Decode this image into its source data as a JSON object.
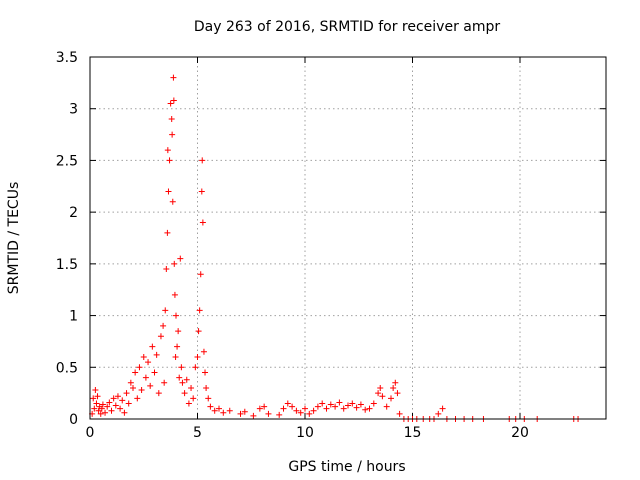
{
  "chart_data": {
    "type": "scatter",
    "title": "Day 263 of 2016, SRMTID for receiver ampr",
    "xlabel": "GPS time / hours",
    "ylabel": "SRMTID / TECUs",
    "xlim": [
      0,
      24
    ],
    "ylim": [
      0,
      3.5
    ],
    "xticks": [
      0,
      5,
      10,
      15,
      20
    ],
    "xtick_labels": [
      "0",
      "5",
      "10",
      "15",
      "20"
    ],
    "yticks": [
      0,
      0.5,
      1,
      1.5,
      2,
      2.5,
      3,
      3.5
    ],
    "ytick_labels": [
      "0",
      "0.5",
      "1",
      "1.5",
      "2",
      "2.5",
      "3",
      "3.5"
    ],
    "grid": true,
    "marker": "+",
    "colors": {
      "marker": "#ff0000",
      "grid": "#a0a0a0",
      "axis": "#000000"
    },
    "series": [
      {
        "name": "ampr",
        "points": [
          [
            0.1,
            0.05
          ],
          [
            0.15,
            0.2
          ],
          [
            0.2,
            0.1
          ],
          [
            0.25,
            0.28
          ],
          [
            0.3,
            0.15
          ],
          [
            0.35,
            0.22
          ],
          [
            0.4,
            0.08
          ],
          [
            0.45,
            0.12
          ],
          [
            0.5,
            0.05
          ],
          [
            0.55,
            0.1
          ],
          [
            0.6,
            0.14
          ],
          [
            0.7,
            0.06
          ],
          [
            0.8,
            0.12
          ],
          [
            0.9,
            0.16
          ],
          [
            1.0,
            0.08
          ],
          [
            1.1,
            0.2
          ],
          [
            1.2,
            0.13
          ],
          [
            1.3,
            0.22
          ],
          [
            1.4,
            0.1
          ],
          [
            1.5,
            0.18
          ],
          [
            1.6,
            0.06
          ],
          [
            1.7,
            0.25
          ],
          [
            1.8,
            0.15
          ],
          [
            1.9,
            0.35
          ],
          [
            2.0,
            0.3
          ],
          [
            2.1,
            0.45
          ],
          [
            2.2,
            0.2
          ],
          [
            2.3,
            0.5
          ],
          [
            2.4,
            0.28
          ],
          [
            2.5,
            0.6
          ],
          [
            2.6,
            0.4
          ],
          [
            2.7,
            0.55
          ],
          [
            2.8,
            0.32
          ],
          [
            2.9,
            0.7
          ],
          [
            3.0,
            0.45
          ],
          [
            3.1,
            0.62
          ],
          [
            3.2,
            0.25
          ],
          [
            3.3,
            0.8
          ],
          [
            3.4,
            0.9
          ],
          [
            3.45,
            0.35
          ],
          [
            3.5,
            1.05
          ],
          [
            3.55,
            1.45
          ],
          [
            3.6,
            1.8
          ],
          [
            3.62,
            2.6
          ],
          [
            3.65,
            2.2
          ],
          [
            3.7,
            2.5
          ],
          [
            3.75,
            3.05
          ],
          [
            3.8,
            2.9
          ],
          [
            3.82,
            2.75
          ],
          [
            3.85,
            2.1
          ],
          [
            3.88,
            3.3
          ],
          [
            3.9,
            3.08
          ],
          [
            3.92,
            1.5
          ],
          [
            3.95,
            1.2
          ],
          [
            3.98,
            0.6
          ],
          [
            4.0,
            1.0
          ],
          [
            4.05,
            0.7
          ],
          [
            4.1,
            0.85
          ],
          [
            4.15,
            0.4
          ],
          [
            4.2,
            1.55
          ],
          [
            4.25,
            0.5
          ],
          [
            4.3,
            0.35
          ],
          [
            4.4,
            0.25
          ],
          [
            4.5,
            0.38
          ],
          [
            4.6,
            0.15
          ],
          [
            4.7,
            0.3
          ],
          [
            4.8,
            0.2
          ],
          [
            4.9,
            0.5
          ],
          [
            5.0,
            0.6
          ],
          [
            5.05,
            0.85
          ],
          [
            5.1,
            1.05
          ],
          [
            5.15,
            1.4
          ],
          [
            5.2,
            2.2
          ],
          [
            5.22,
            2.5
          ],
          [
            5.25,
            1.9
          ],
          [
            5.3,
            0.65
          ],
          [
            5.35,
            0.45
          ],
          [
            5.4,
            0.3
          ],
          [
            5.5,
            0.2
          ],
          [
            5.6,
            0.12
          ],
          [
            5.8,
            0.08
          ],
          [
            6.0,
            0.1
          ],
          [
            6.2,
            0.06
          ],
          [
            6.5,
            0.08
          ],
          [
            7.0,
            0.05
          ],
          [
            7.2,
            0.07
          ],
          [
            7.6,
            0.03
          ],
          [
            7.9,
            0.1
          ],
          [
            8.1,
            0.12
          ],
          [
            8.3,
            0.05
          ],
          [
            8.8,
            0.04
          ],
          [
            9.0,
            0.1
          ],
          [
            9.2,
            0.15
          ],
          [
            9.4,
            0.12
          ],
          [
            9.6,
            0.08
          ],
          [
            9.8,
            0.06
          ],
          [
            10.0,
            0.1
          ],
          [
            10.2,
            0.05
          ],
          [
            10.4,
            0.08
          ],
          [
            10.6,
            0.12
          ],
          [
            10.8,
            0.15
          ],
          [
            11.0,
            0.1
          ],
          [
            11.2,
            0.14
          ],
          [
            11.4,
            0.12
          ],
          [
            11.6,
            0.16
          ],
          [
            11.8,
            0.1
          ],
          [
            12.0,
            0.13
          ],
          [
            12.2,
            0.15
          ],
          [
            12.4,
            0.11
          ],
          [
            12.6,
            0.14
          ],
          [
            12.8,
            0.09
          ],
          [
            13.0,
            0.1
          ],
          [
            13.2,
            0.15
          ],
          [
            13.4,
            0.25
          ],
          [
            13.5,
            0.3
          ],
          [
            13.6,
            0.22
          ],
          [
            13.8,
            0.12
          ],
          [
            14.0,
            0.2
          ],
          [
            14.1,
            0.3
          ],
          [
            14.2,
            0.35
          ],
          [
            14.3,
            0.25
          ],
          [
            14.4,
            0.05
          ],
          [
            14.6,
            0.0
          ],
          [
            14.8,
            0.0
          ],
          [
            15.0,
            0.0
          ],
          [
            15.2,
            0.0
          ],
          [
            15.5,
            0.0
          ],
          [
            15.8,
            0.0
          ],
          [
            16.0,
            0.0
          ],
          [
            16.2,
            0.05
          ],
          [
            16.4,
            0.1
          ],
          [
            16.6,
            0.0
          ],
          [
            17.0,
            0.0
          ],
          [
            17.4,
            0.0
          ],
          [
            17.8,
            0.0
          ],
          [
            18.3,
            0.0
          ],
          [
            19.5,
            0.0
          ],
          [
            19.8,
            0.0
          ],
          [
            20.2,
            0.0
          ],
          [
            20.8,
            0.0
          ],
          [
            22.5,
            0.0
          ],
          [
            22.7,
            0.0
          ]
        ]
      }
    ]
  }
}
